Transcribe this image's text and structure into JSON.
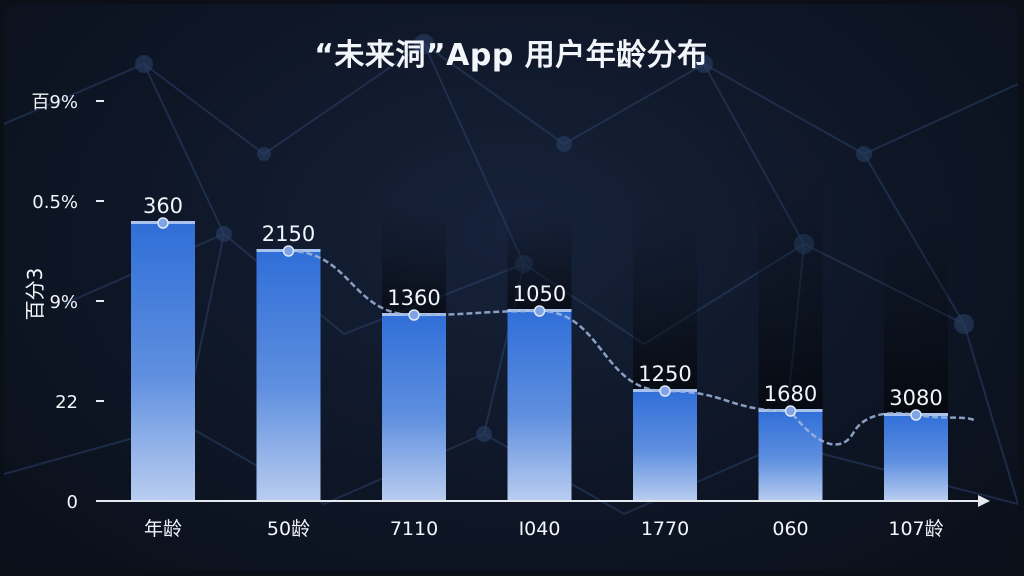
{
  "chart_data": {
    "type": "bar",
    "title": "“未来洞”App 用户年龄分布",
    "xlabel": "",
    "ylabel": "百分3",
    "y_tick_labels": [
      "百9%",
      "0.5%",
      "9%",
      "22",
      "0"
    ],
    "categories": [
      "年龄",
      "50龄",
      "7110",
      "I040",
      "1770",
      "060",
      "107龄"
    ],
    "series": [
      {
        "values": [
          360,
          2150,
          1360,
          1050,
          1250,
          1680,
          3080
        ],
        "relative_height": [
          0.7,
          0.63,
          0.47,
          0.48,
          0.28,
          0.23,
          0.22
        ]
      }
    ],
    "trend_line": true,
    "grid": false,
    "legend": "none",
    "colors": {
      "bar_top": "#2f6ed8",
      "bar_bottom": "#b9cdf0",
      "label": "#f2f5fa",
      "axis": "#e6e9ef",
      "trend": "#9fb6dc"
    }
  }
}
